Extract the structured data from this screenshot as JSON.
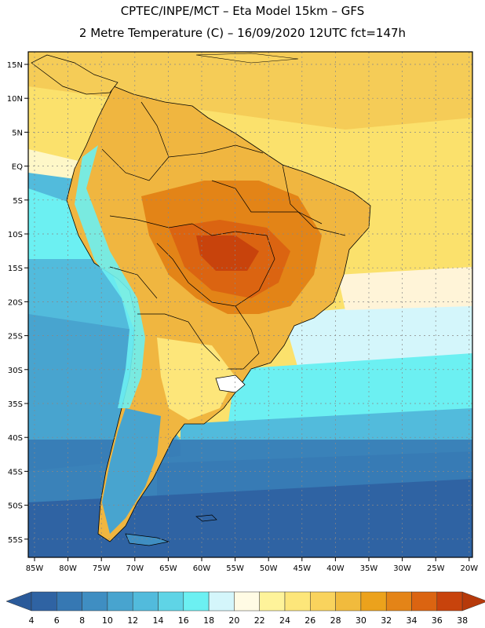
{
  "header": {
    "line1": "CPTEC/INPE/MCT –  Eta Model 15km – GFS",
    "line2": "2 Metre Temperature (C) – 16/09/2020 12UTC fct=147h"
  },
  "map": {
    "lat_labels": [
      "15N",
      "10N",
      "5N",
      "EQ",
      "5S",
      "10S",
      "15S",
      "20S",
      "25S",
      "30S",
      "35S",
      "40S",
      "45S",
      "50S",
      "55S"
    ],
    "lon_labels": [
      "85W",
      "80W",
      "75W",
      "70W",
      "65W",
      "60W",
      "55W",
      "50W",
      "45W",
      "40W",
      "35W",
      "30W",
      "25W",
      "20W"
    ],
    "ocean_bands_note": ""
  },
  "colorbar": {
    "labels": [
      "4",
      "6",
      "8",
      "10",
      "12",
      "14",
      "16",
      "18",
      "20",
      "22",
      "24",
      "26",
      "28",
      "30",
      "32",
      "34",
      "36",
      "38"
    ],
    "colors": [
      "#2f63a3",
      "#3678b3",
      "#3f8ec2",
      "#48a4cf",
      "#52bbdc",
      "#5fd4e6",
      "#6cf0f2",
      "#d4f6fb",
      "#fffbe4",
      "#fef39a",
      "#fde67a",
      "#f9d35d",
      "#f1bb3d",
      "#eca21c",
      "#e48417",
      "#db6411",
      "#c8430c"
    ],
    "left_arrow_color": "#2a5a9a",
    "right_arrow_color": "#b6390a"
  }
}
